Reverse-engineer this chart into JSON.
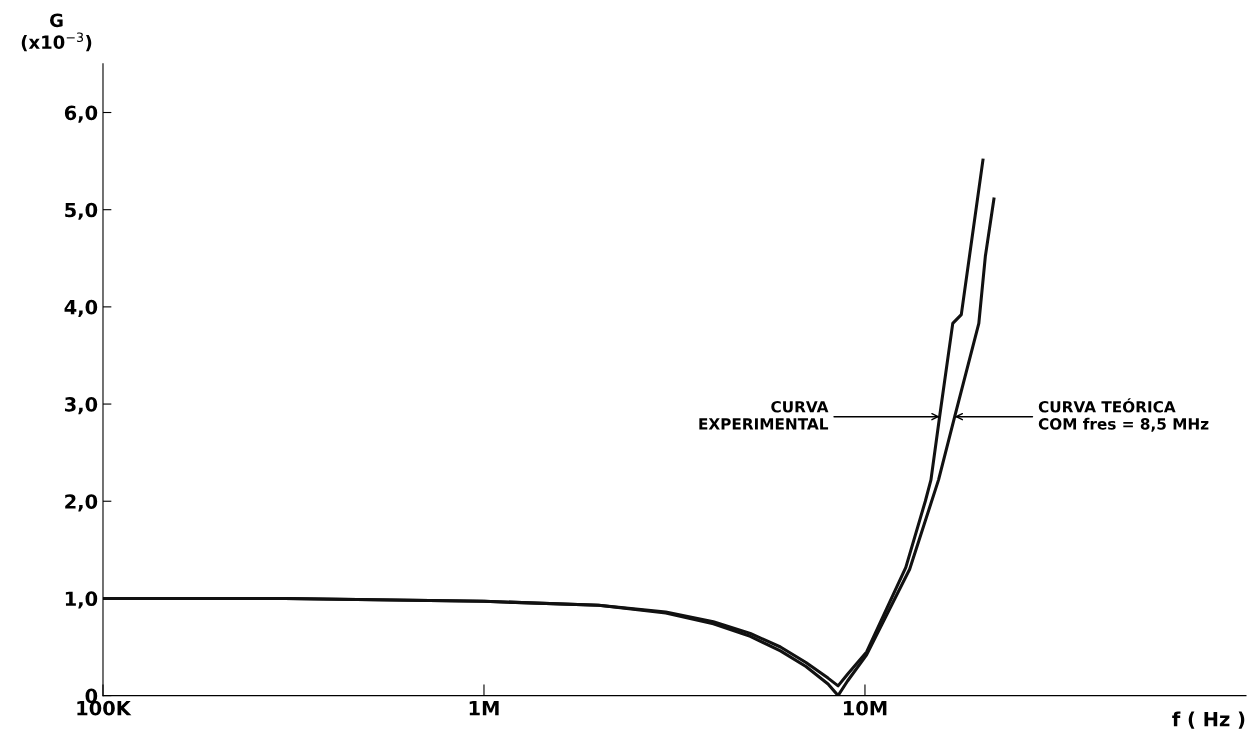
{
  "chart_data": {
    "type": "line",
    "xlabel": "f ( Hz )",
    "ylabel": "G\n(x10$^{−3}$)",
    "log": "x",
    "xlim": [
      100000,
      100000000
    ],
    "xticks": [
      {
        "value": 100000,
        "label": "100K"
      },
      {
        "value": 1000000,
        "label": "1M"
      },
      {
        "value": 10000000,
        "label": "10M"
      }
    ],
    "ylim": [
      0,
      6.5
    ],
    "yticks": [
      {
        "value": 0,
        "label": "0"
      },
      {
        "value": 1,
        "label": "1,0"
      },
      {
        "value": 2,
        "label": "2,0"
      },
      {
        "value": 3,
        "label": "3,0"
      },
      {
        "value": 4,
        "label": "4,0"
      },
      {
        "value": 5,
        "label": "5,0"
      },
      {
        "value": 6,
        "label": "6,0"
      }
    ],
    "marker": "none",
    "line_style": "solid",
    "series": [
      {
        "color": "#111111",
        "x": [
          100000,
          300000,
          1000000,
          2000000,
          3000000,
          4000000,
          5000000,
          6000000,
          7000000,
          8000000,
          8500000,
          9000000,
          10100000,
          12800000,
          14400000,
          14900000,
          15700000,
          17000000,
          17900000,
          20400000
        ],
        "values": [
          1.0,
          1.0,
          0.97,
          0.93,
          0.86,
          0.76,
          0.64,
          0.5,
          0.34,
          0.18,
          0.1,
          0.22,
          0.45,
          1.32,
          2.0,
          2.22,
          2.87,
          3.83,
          3.92,
          5.51
        ]
      },
      {
        "color": "#111111",
        "x": [
          100000,
          300000,
          1000000,
          2000000,
          3000000,
          4000000,
          5000000,
          6000000,
          7000000,
          8000000,
          8500000,
          9000000,
          10100000,
          13100000,
          15600000,
          17200000,
          19900000,
          20700000,
          21800000
        ],
        "values": [
          1.0,
          1.0,
          0.97,
          0.93,
          0.85,
          0.74,
          0.61,
          0.46,
          0.3,
          0.12,
          0.0,
          0.15,
          0.42,
          1.3,
          2.22,
          2.87,
          3.83,
          4.52,
          5.11
        ]
      }
    ],
    "annotations": [
      {
        "text": "CURVA\nEXPERIMENTAL",
        "x": 15700000,
        "y": 2.87
      },
      {
        "text": "CURVA TEÓRICA\nCOM fres = 8,5 MHz",
        "x": 17200000,
        "y": 2.87
      }
    ]
  }
}
